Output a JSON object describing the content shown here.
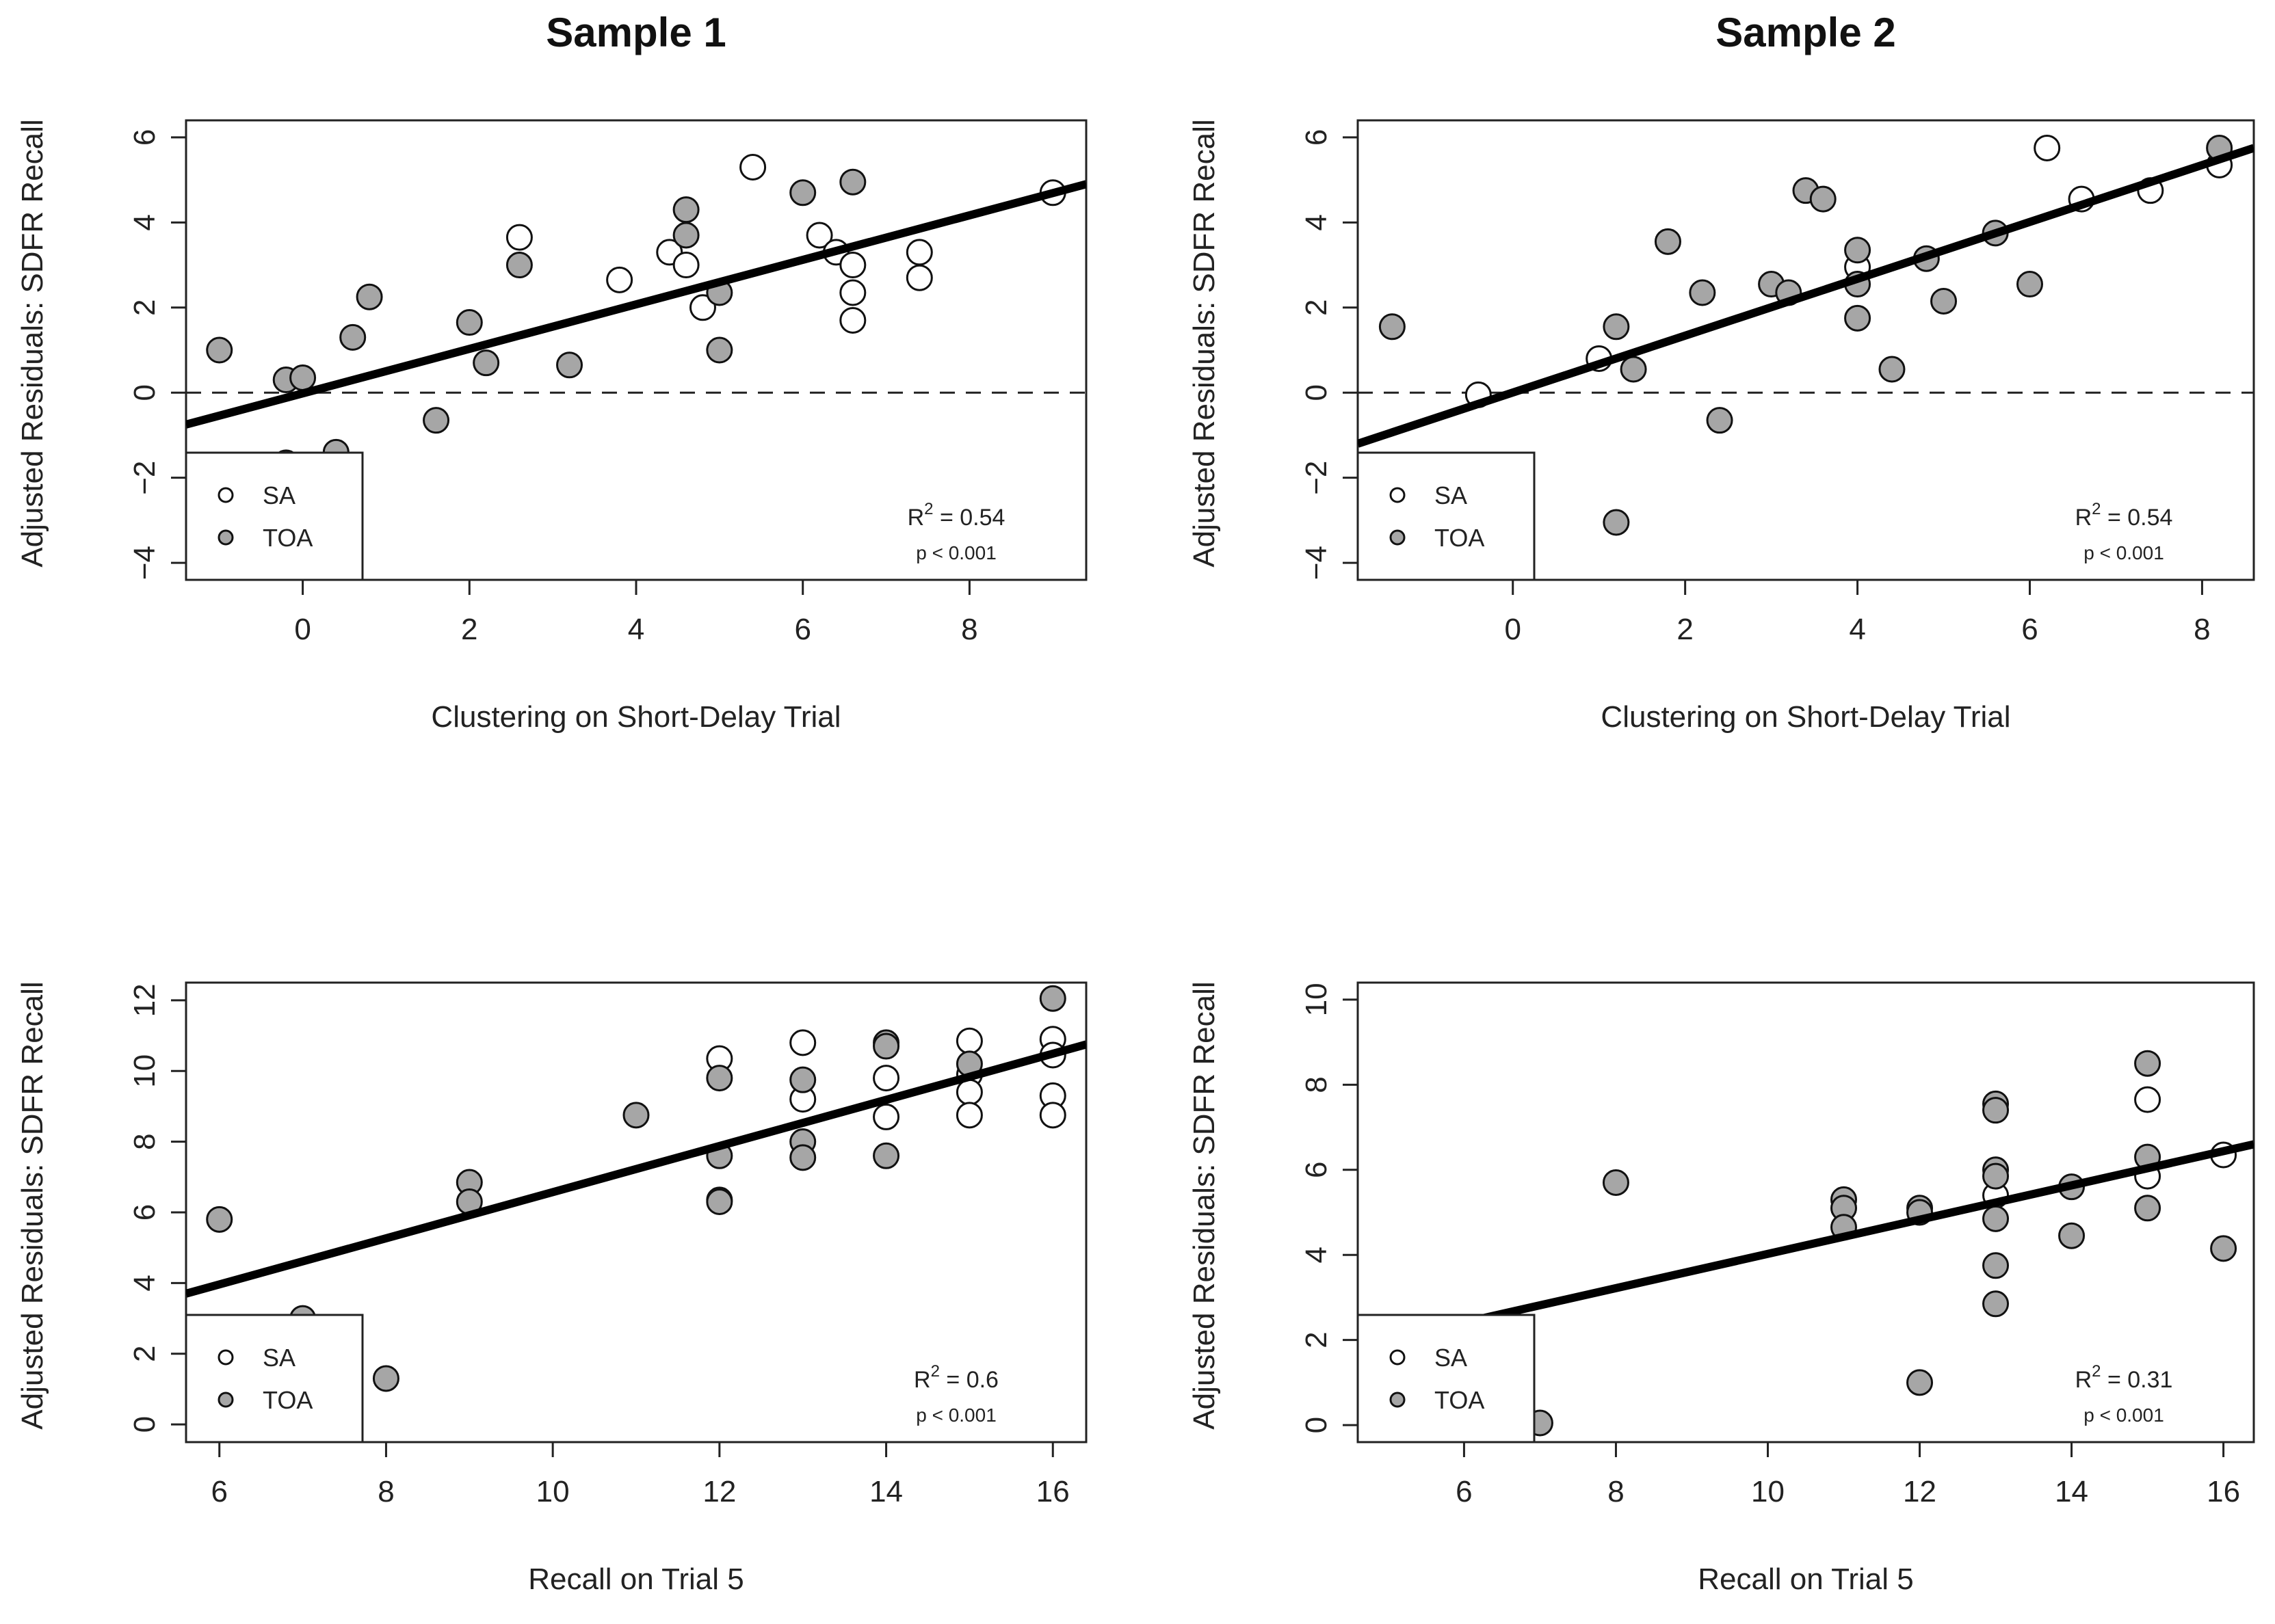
{
  "columns": [
    "Sample 1",
    "Sample 2"
  ],
  "chart_data": [
    {
      "type": "scatter",
      "title": "Sample 1",
      "xlabel": "Clustering on Short-Delay Trial",
      "ylabel": "Adjusted Residuals: SDFR Recall",
      "xlim": [
        -1.4,
        9.4
      ],
      "ylim": [
        -4.4,
        6.4
      ],
      "xticks": [
        0,
        2,
        4,
        6,
        8
      ],
      "yticks": [
        -4,
        -2,
        0,
        2,
        4,
        6
      ],
      "reference_line_y": 0,
      "fit_line": {
        "x": [
          -1.4,
          9.4
        ],
        "y": [
          -0.75,
          4.9
        ]
      },
      "legend": {
        "position": "bottom-left",
        "entries": [
          "SA",
          "TOA"
        ]
      },
      "stats": {
        "r2_label": "R",
        "r2_sup": "2",
        "r2_value": " = 0.54",
        "p": "p < 0.001"
      },
      "series": [
        {
          "name": "SA",
          "fill": "#ffffff",
          "x": [
            2.6,
            3.8,
            4.4,
            4.6,
            4.8,
            5.4,
            6.2,
            6.4,
            6.6,
            6.6,
            6.6,
            7.4,
            7.4,
            9.0
          ],
          "y": [
            3.65,
            2.65,
            3.3,
            3.0,
            2.0,
            5.3,
            3.7,
            3.3,
            3.0,
            2.35,
            1.7,
            3.3,
            2.7,
            4.7
          ]
        },
        {
          "name": "TOA",
          "fill": "#a6a6a6",
          "x": [
            -1.0,
            -0.2,
            0.0,
            0.6,
            0.8,
            1.6,
            2.0,
            2.2,
            2.6,
            3.2,
            4.6,
            4.6,
            5.0,
            5.0,
            6.0,
            6.6,
            -0.2,
            0.4
          ],
          "y": [
            1.0,
            0.3,
            0.35,
            1.3,
            2.25,
            -0.65,
            1.65,
            0.7,
            3.0,
            0.65,
            4.3,
            3.7,
            2.35,
            1.0,
            4.7,
            4.95,
            -1.65,
            -1.4
          ]
        }
      ]
    },
    {
      "type": "scatter",
      "title": "Sample 2",
      "xlabel": "Clustering on Short-Delay Trial",
      "ylabel": "Adjusted Residuals: SDFR Recall",
      "xlim": [
        -1.8,
        8.6
      ],
      "ylim": [
        -4.4,
        6.4
      ],
      "xticks": [
        0,
        2,
        4,
        6,
        8
      ],
      "yticks": [
        -4,
        -2,
        0,
        2,
        4,
        6
      ],
      "reference_line_y": 0,
      "fit_line": {
        "x": [
          -1.8,
          8.6
        ],
        "y": [
          -1.2,
          5.75
        ]
      },
      "legend": {
        "position": "bottom-left",
        "entries": [
          "SA",
          "TOA"
        ]
      },
      "stats": {
        "r2_label": "R",
        "r2_sup": "2",
        "r2_value": " = 0.54",
        "p": "p < 0.001"
      },
      "series": [
        {
          "name": "SA",
          "fill": "#ffffff",
          "x": [
            -0.4,
            1.0,
            4.0,
            6.2,
            6.6,
            7.4,
            8.2
          ],
          "y": [
            -0.05,
            0.8,
            2.95,
            5.75,
            4.55,
            4.75,
            5.35
          ]
        },
        {
          "name": "TOA",
          "fill": "#a6a6a6",
          "x": [
            -1.4,
            1.2,
            1.4,
            1.2,
            1.8,
            2.2,
            2.4,
            3.0,
            3.2,
            3.4,
            3.6,
            4.0,
            4.0,
            4.0,
            4.4,
            4.8,
            5.0,
            5.6,
            6.0,
            8.2
          ],
          "y": [
            1.55,
            1.55,
            0.55,
            -3.05,
            3.55,
            2.35,
            -0.65,
            2.55,
            2.35,
            4.75,
            4.55,
            3.35,
            2.55,
            1.75,
            0.55,
            3.15,
            2.15,
            3.75,
            2.55,
            5.75
          ]
        }
      ]
    },
    {
      "type": "scatter",
      "title": "",
      "xlabel": "Recall on Trial 5",
      "ylabel": "Adjusted Residuals: SDFR Recall",
      "xlim": [
        5.6,
        16.4
      ],
      "ylim": [
        -0.5,
        12.5
      ],
      "xticks": [
        6,
        8,
        10,
        12,
        14,
        16
      ],
      "yticks": [
        0,
        2,
        4,
        6,
        8,
        10,
        12
      ],
      "reference_line_y": null,
      "fit_line": {
        "x": [
          5.6,
          16.4
        ],
        "y": [
          3.7,
          10.75
        ]
      },
      "legend": {
        "position": "bottom-left",
        "entries": [
          "SA",
          "TOA"
        ]
      },
      "stats": {
        "r2_label": "R",
        "r2_sup": "2",
        "r2_value": " = 0.6",
        "p": "p < 0.001"
      },
      "series": [
        {
          "name": "SA",
          "fill": "#ffffff",
          "x": [
            12,
            13,
            13,
            14,
            14,
            15,
            15,
            15,
            15,
            16,
            16,
            16,
            16
          ],
          "y": [
            10.35,
            10.8,
            9.2,
            9.8,
            8.7,
            10.85,
            9.9,
            9.4,
            8.75,
            10.9,
            10.45,
            9.3,
            8.75
          ]
        },
        {
          "name": "TOA",
          "fill": "#a6a6a6",
          "x": [
            6,
            7,
            8,
            9,
            9,
            11,
            12,
            12,
            12,
            12,
            13,
            13,
            13,
            14,
            14,
            14,
            15,
            16
          ],
          "y": [
            5.8,
            3.0,
            1.3,
            6.85,
            6.3,
            8.75,
            9.8,
            7.6,
            6.35,
            6.3,
            9.75,
            8.0,
            7.55,
            10.8,
            10.7,
            7.6,
            10.2,
            12.05
          ]
        }
      ]
    },
    {
      "type": "scatter",
      "title": "",
      "xlabel": "Recall on Trial 5",
      "ylabel": "Adjusted Residuals: SDFR Recall",
      "xlim": [
        4.6,
        16.4
      ],
      "ylim": [
        -0.4,
        10.4
      ],
      "xticks": [
        6,
        8,
        10,
        12,
        14,
        16
      ],
      "yticks": [
        0,
        2,
        4,
        6,
        8,
        10
      ],
      "reference_line_y": null,
      "fit_line": {
        "x": [
          4.6,
          16.4
        ],
        "y": [
          1.85,
          6.6
        ]
      },
      "legend": {
        "position": "bottom-left",
        "entries": [
          "SA",
          "TOA"
        ]
      },
      "stats": {
        "r2_label": "R",
        "r2_sup": "2",
        "r2_value": " = 0.31",
        "p": "p < 0.001"
      },
      "series": [
        {
          "name": "SA",
          "fill": "#ffffff",
          "x": [
            13,
            15,
            15,
            16
          ],
          "y": [
            5.4,
            7.65,
            5.85,
            6.35
          ]
        },
        {
          "name": "TOA",
          "fill": "#a6a6a6",
          "x": [
            7,
            8,
            11,
            11,
            11,
            12,
            12,
            12,
            13,
            13,
            13,
            13,
            13,
            13,
            13,
            14,
            14,
            15,
            15,
            15,
            16
          ],
          "y": [
            0.05,
            5.7,
            5.3,
            5.1,
            4.65,
            5.1,
            5.0,
            1.0,
            7.55,
            7.4,
            6.0,
            5.85,
            4.85,
            3.75,
            2.85,
            5.6,
            4.45,
            8.5,
            6.3,
            5.1,
            4.15
          ]
        }
      ]
    }
  ]
}
